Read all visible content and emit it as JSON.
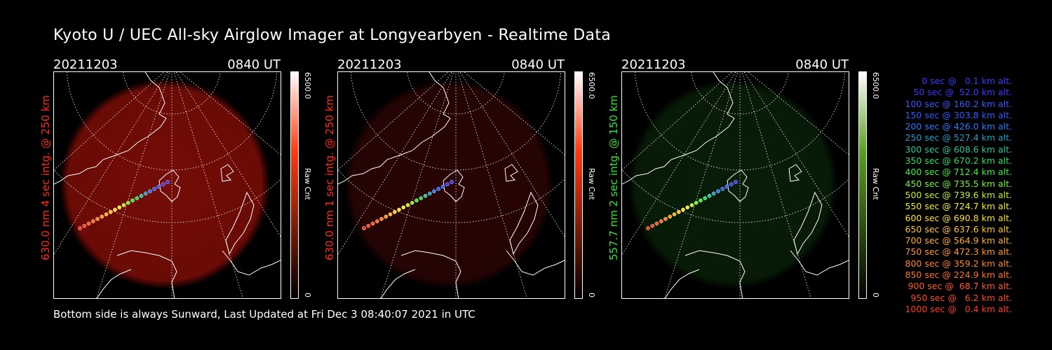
{
  "title": "Kyoto U / UEC All-sky Airglow Imager at Longyearbyen - Realtime Data",
  "footer": "Bottom side is always Sunward, Last Updated at Fri Dec  3 08:40:07 2021 in UTC",
  "panels": [
    {
      "date": "20211203",
      "time": "0840 UT",
      "label": "630.0 nm  4 sec intg. @ 250 km",
      "label_color": "#ff2a1a",
      "cbar_max": "6500.0",
      "cbar_unit": "Raw Cnt",
      "cbar_min": "0",
      "glow_color": "#8a0e08",
      "glow_strength": 0.85,
      "cbar_top": "#ff3a10"
    },
    {
      "date": "20211203",
      "time": "0840 UT",
      "label": "630.0 nm  1 sec intg. @ 250 km",
      "label_color": "#ff2a1a",
      "cbar_max": "6500.0",
      "cbar_unit": "Raw Cnt",
      "cbar_min": "0",
      "glow_color": "#3a0606",
      "glow_strength": 0.7,
      "cbar_top": "#ff3a10"
    },
    {
      "date": "20211203",
      "time": "0840 UT",
      "label": "557.7 nm  2 sec intg. @ 150 km",
      "label_color": "#36e23a",
      "cbar_max": "6500.0",
      "cbar_unit": "Raw Cnt",
      "cbar_min": "0",
      "glow_color": "#0b2a0b",
      "glow_strength": 0.7,
      "cbar_top": "#5aa020"
    }
  ],
  "legend": [
    {
      "text": "   0 sec @   0.1 km alt.",
      "color": "#3a3aff"
    },
    {
      "text": "  50 sec @  52.0 km alt.",
      "color": "#3a3aff"
    },
    {
      "text": " 100 sec @ 160.2 km alt.",
      "color": "#2f5cff"
    },
    {
      "text": " 150 sec @ 303.8 km alt.",
      "color": "#2f5cff"
    },
    {
      "text": " 200 sec @ 426.0 km alt.",
      "color": "#2a7aff"
    },
    {
      "text": " 250 sec @ 527.4 km alt.",
      "color": "#1aa0c8"
    },
    {
      "text": " 300 sec @ 608.6 km alt.",
      "color": "#20c8a0"
    },
    {
      "text": " 350 sec @ 670.2 km alt.",
      "color": "#22e060"
    },
    {
      "text": " 400 sec @ 712.4 km alt.",
      "color": "#3af03a"
    },
    {
      "text": " 450 sec @ 735.5 km alt.",
      "color": "#7af030"
    },
    {
      "text": " 500 sec @ 739.6 km alt.",
      "color": "#c0f020"
    },
    {
      "text": " 550 sec @ 724.7 km alt.",
      "color": "#f0f020"
    },
    {
      "text": " 600 sec @ 690.8 km alt.",
      "color": "#ffe020"
    },
    {
      "text": " 650 sec @ 637.6 km alt.",
      "color": "#ffc820"
    },
    {
      "text": " 700 sec @ 564.9 km alt.",
      "color": "#ffb020"
    },
    {
      "text": " 750 sec @ 472.3 km alt.",
      "color": "#ff9a20"
    },
    {
      "text": " 800 sec @ 359.2 km alt.",
      "color": "#ff8420"
    },
    {
      "text": " 850 sec @ 224.9 km alt.",
      "color": "#ff7020"
    },
    {
      "text": " 900 sec @  68.7 km alt.",
      "color": "#ff5a20"
    },
    {
      "text": " 950 sec @   6.2 km alt.",
      "color": "#ff4a20"
    },
    {
      "text": "1000 sec @   0.4 km alt.",
      "color": "#ff3a20"
    }
  ]
}
